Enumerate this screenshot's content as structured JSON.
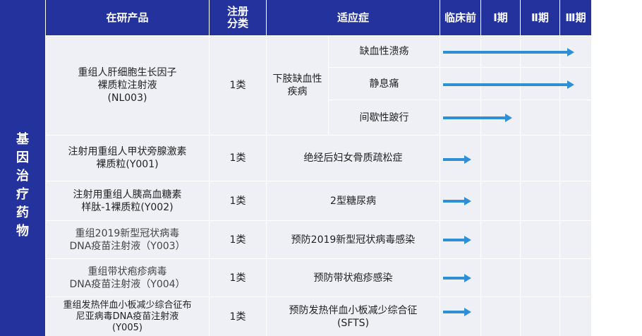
{
  "headers": {
    "product": "在研产品",
    "registration": "注册\n分类",
    "indication": "适应症",
    "preclinical": "临床前",
    "phase1": "Ⅰ期",
    "phase2": "Ⅱ期",
    "phase3": "Ⅲ期"
  },
  "category": "基因治疗药物",
  "rows": [
    {
      "product": "重组人肝细胞生长因子\n裸质粒注射液\n(NL003)",
      "registration": "1类",
      "indication_group": "下肢缺血性\n疾病",
      "sub_indications": [
        {
          "label": "缺血性溃疡",
          "stage_reached": 4
        },
        {
          "label": "静息痛",
          "stage_reached": 4
        },
        {
          "label": "间歇性跛行",
          "stage_reached": 2
        }
      ]
    },
    {
      "product": "注射用重组人甲状旁腺激素\n裸质粒(Y001)",
      "registration": "1类",
      "indication": "绝经后妇女骨质疏松症",
      "stage_reached": 1
    },
    {
      "product": "注射用重组人胰高血糖素\n样肽-1裸质粒(Y002)",
      "registration": "1类",
      "indication": "2型糖尿病",
      "stage_reached": 1
    },
    {
      "product": "重组2019新型冠状病毒\nDNA疫苗注射液（Y003）",
      "registration": "1类",
      "indication": "预防2019新型冠状病毒感染",
      "stage_reached": 1
    },
    {
      "product": "重组带状疱疹病毒\nDNA疫苗注射液（Y004）",
      "registration": "1类",
      "indication": "预防带状疱疹感染",
      "stage_reached": 1
    },
    {
      "product": "重组发热伴血小板减少综合征布\n尼亚病毒DNA疫苗注射液\n(Y005)",
      "registration": "1类",
      "indication": "预防发热伴血小板减少综合征\n(SFTS)",
      "stage_reached": 1
    }
  ],
  "colors": {
    "header": "#24329e",
    "row": "#eef0f6",
    "arrow": "#2e8fd6"
  }
}
